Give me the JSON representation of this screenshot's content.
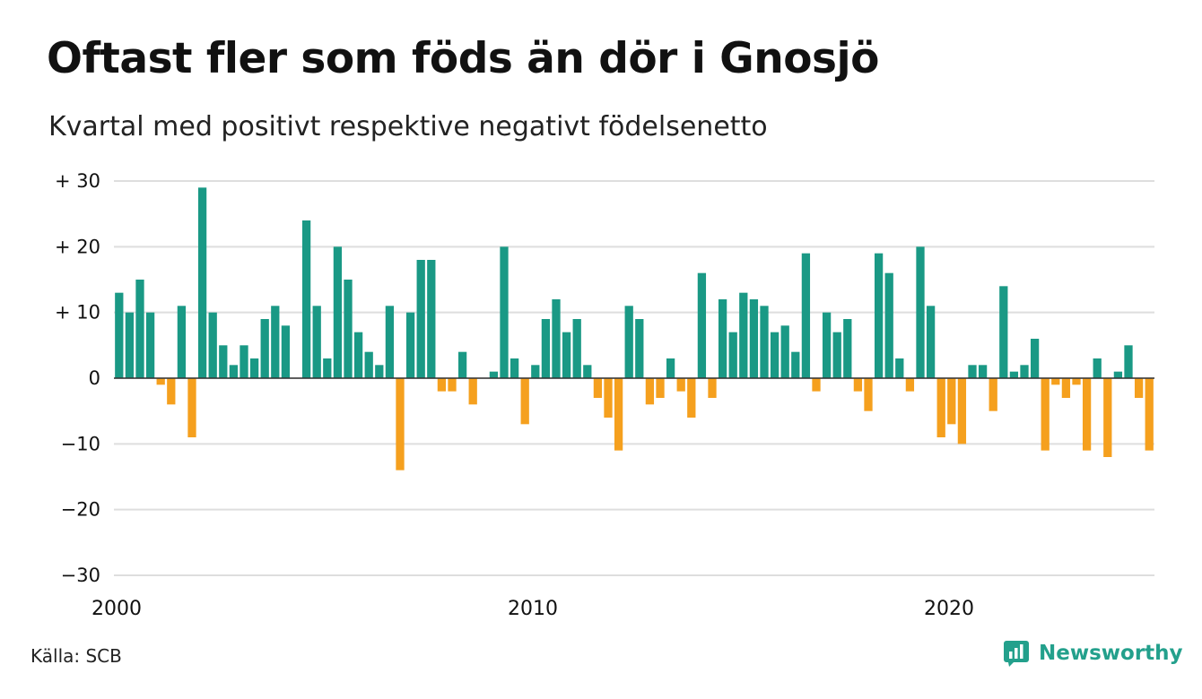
{
  "chart_data": {
    "type": "bar",
    "title": "Oftast fler som föds än dör i Gnosjö",
    "subtitle": "Kvartal med positivt respektive negativt födelsenetto",
    "ylim": [
      -30,
      30
    ],
    "y_ticks": [
      30,
      20,
      10,
      0,
      -10,
      -20,
      -30
    ],
    "y_tick_labels": [
      "+ 30",
      "+ 20",
      "+ 10",
      "0",
      "−10",
      "−20",
      "−30"
    ],
    "x_tick_labels": [
      "2000",
      "2010",
      "2020"
    ],
    "x_tick_years": [
      2000,
      2010,
      2020
    ],
    "grid": true,
    "positive_color": "#1a9985",
    "negative_color": "#f5a01e",
    "start_year": 2000,
    "values": [
      13,
      10,
      15,
      10,
      -1,
      -4,
      11,
      -9,
      29,
      10,
      5,
      2,
      5,
      3,
      9,
      11,
      8,
      0,
      24,
      11,
      3,
      20,
      15,
      7,
      4,
      2,
      11,
      -14,
      10,
      18,
      18,
      -2,
      -2,
      4,
      -4,
      0,
      1,
      20,
      3,
      -7,
      2,
      9,
      12,
      7,
      9,
      2,
      -3,
      -6,
      -11,
      11,
      9,
      -4,
      -3,
      3,
      -2,
      -6,
      16,
      -3,
      12,
      7,
      13,
      12,
      11,
      7,
      8,
      4,
      19,
      -2,
      10,
      7,
      9,
      -2,
      -5,
      19,
      16,
      3,
      -2,
      20,
      11,
      -9,
      -7,
      -10,
      2,
      2,
      -5,
      14,
      1,
      2,
      6,
      -11,
      -1,
      -3,
      -1,
      -11,
      3,
      -12,
      1,
      5,
      -3,
      -11
    ]
  },
  "source": "Källa: SCB",
  "brand": {
    "name": "Newsworthy",
    "icon": "newsworthy-logo-icon",
    "color": "#23a08c"
  }
}
